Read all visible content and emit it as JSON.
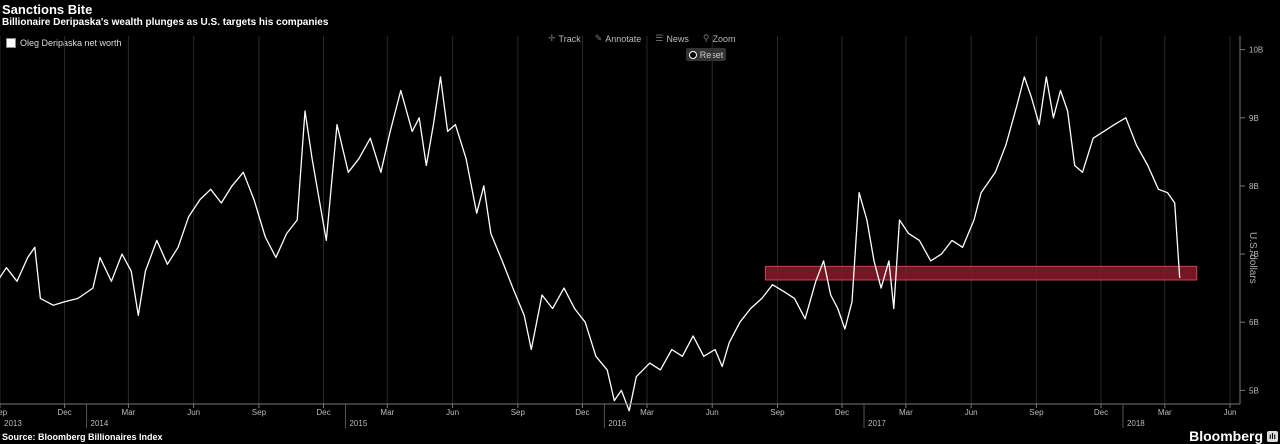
{
  "header": {
    "title": "Sanctions Bite",
    "subtitle": "Billionaire Deripaska's wealth plunges as U.S. targets his companies"
  },
  "legend": {
    "label": "Oleg Deripaska net worth",
    "color": "#ffffff"
  },
  "toolbar": {
    "track": "Track",
    "annotate": "Annotate",
    "news": "News",
    "zoom": "Zoom",
    "reset": "Reset"
  },
  "footer": {
    "source": "Source: Bloomberg Billionaires Index",
    "brand": "Bloomberg"
  },
  "colors": {
    "background": "#000000",
    "line": "#ffffff",
    "highlight": "#8b1a2b",
    "grid": "#2a2a2a"
  },
  "chart_data": {
    "type": "line",
    "title": "Sanctions Bite",
    "ylabel": "U.S. dollars",
    "ylim": [
      4.8,
      10.2
    ],
    "yticks": [
      "5B",
      "6B",
      "7B",
      "8B",
      "9B",
      "10B"
    ],
    "yaxis_side": "right",
    "grid": "vertical",
    "xlim": [
      "2013-09-01",
      "2018-06-15"
    ],
    "month_ticks": [
      "Sep",
      "Dec",
      "Mar",
      "Jun",
      "Sep",
      "Dec",
      "Mar",
      "Jun",
      "Sep",
      "Dec",
      "Mar",
      "Jun",
      "Sep",
      "Dec",
      "Mar",
      "Jun",
      "Sep",
      "Dec",
      "Mar",
      "Jun"
    ],
    "month_dates": [
      "2013-09-01",
      "2013-12-01",
      "2014-03-01",
      "2014-06-01",
      "2014-09-01",
      "2014-12-01",
      "2015-03-01",
      "2015-06-01",
      "2015-09-01",
      "2015-12-01",
      "2016-03-01",
      "2016-06-01",
      "2016-09-01",
      "2016-12-01",
      "2017-03-01",
      "2017-06-01",
      "2017-09-01",
      "2017-12-01",
      "2018-03-01",
      "2018-06-01"
    ],
    "year_ticks": [
      "2013",
      "2014",
      "2015",
      "2016",
      "2017",
      "2018"
    ],
    "year_dates": [
      "2013-09-01",
      "2014-01-01",
      "2015-01-01",
      "2016-01-01",
      "2017-01-01",
      "2018-01-01"
    ],
    "highlight_band": {
      "x": [
        "2016-08-15",
        "2018-04-15"
      ],
      "y": [
        6.62,
        6.82
      ]
    },
    "series": [
      {
        "name": "Oleg Deripaska net worth",
        "points": [
          [
            "2013-08-25",
            6.55
          ],
          [
            "2013-09-10",
            6.8
          ],
          [
            "2013-09-25",
            6.6
          ],
          [
            "2013-10-10",
            6.95
          ],
          [
            "2013-10-20",
            7.1
          ],
          [
            "2013-10-28",
            6.35
          ],
          [
            "2013-11-15",
            6.25
          ],
          [
            "2013-12-01",
            6.3
          ],
          [
            "2013-12-20",
            6.35
          ],
          [
            "2014-01-10",
            6.5
          ],
          [
            "2014-01-20",
            6.95
          ],
          [
            "2014-02-05",
            6.6
          ],
          [
            "2014-02-20",
            7.0
          ],
          [
            "2014-03-05",
            6.75
          ],
          [
            "2014-03-15",
            6.1
          ],
          [
            "2014-03-25",
            6.75
          ],
          [
            "2014-04-10",
            7.2
          ],
          [
            "2014-04-25",
            6.85
          ],
          [
            "2014-05-10",
            7.1
          ],
          [
            "2014-05-25",
            7.55
          ],
          [
            "2014-06-10",
            7.8
          ],
          [
            "2014-06-25",
            7.95
          ],
          [
            "2014-07-10",
            7.75
          ],
          [
            "2014-07-25",
            8.0
          ],
          [
            "2014-08-10",
            8.2
          ],
          [
            "2014-08-25",
            7.8
          ],
          [
            "2014-09-10",
            7.25
          ],
          [
            "2014-09-25",
            6.95
          ],
          [
            "2014-10-10",
            7.3
          ],
          [
            "2014-10-25",
            7.5
          ],
          [
            "2014-11-05",
            9.1
          ],
          [
            "2014-11-15",
            8.4
          ],
          [
            "2014-12-05",
            7.2
          ],
          [
            "2014-12-20",
            8.9
          ],
          [
            "2015-01-05",
            8.2
          ],
          [
            "2015-01-20",
            8.4
          ],
          [
            "2015-02-05",
            8.7
          ],
          [
            "2015-02-20",
            8.2
          ],
          [
            "2015-03-05",
            8.8
          ],
          [
            "2015-03-20",
            9.4
          ],
          [
            "2015-04-05",
            8.8
          ],
          [
            "2015-04-15",
            9.0
          ],
          [
            "2015-04-25",
            8.3
          ],
          [
            "2015-05-05",
            8.9
          ],
          [
            "2015-05-15",
            9.6
          ],
          [
            "2015-05-25",
            8.8
          ],
          [
            "2015-06-05",
            8.9
          ],
          [
            "2015-06-20",
            8.4
          ],
          [
            "2015-07-05",
            7.6
          ],
          [
            "2015-07-15",
            8.0
          ],
          [
            "2015-07-25",
            7.3
          ],
          [
            "2015-08-10",
            6.9
          ],
          [
            "2015-08-25",
            6.5
          ],
          [
            "2015-09-10",
            6.1
          ],
          [
            "2015-09-20",
            5.6
          ],
          [
            "2015-10-05",
            6.4
          ],
          [
            "2015-10-20",
            6.2
          ],
          [
            "2015-11-05",
            6.5
          ],
          [
            "2015-11-20",
            6.2
          ],
          [
            "2015-12-05",
            6.0
          ],
          [
            "2015-12-20",
            5.5
          ],
          [
            "2016-01-05",
            5.3
          ],
          [
            "2016-01-15",
            4.85
          ],
          [
            "2016-01-25",
            5.0
          ],
          [
            "2016-02-05",
            4.7
          ],
          [
            "2016-02-15",
            5.2
          ],
          [
            "2016-03-05",
            5.4
          ],
          [
            "2016-03-20",
            5.3
          ],
          [
            "2016-04-05",
            5.6
          ],
          [
            "2016-04-20",
            5.5
          ],
          [
            "2016-05-05",
            5.8
          ],
          [
            "2016-05-20",
            5.5
          ],
          [
            "2016-06-05",
            5.6
          ],
          [
            "2016-06-15",
            5.35
          ],
          [
            "2016-06-25",
            5.7
          ],
          [
            "2016-07-10",
            6.0
          ],
          [
            "2016-07-25",
            6.2
          ],
          [
            "2016-08-10",
            6.35
          ],
          [
            "2016-08-25",
            6.55
          ],
          [
            "2016-09-10",
            6.45
          ],
          [
            "2016-09-25",
            6.35
          ],
          [
            "2016-10-10",
            6.05
          ],
          [
            "2016-10-25",
            6.6
          ],
          [
            "2016-11-05",
            6.9
          ],
          [
            "2016-11-15",
            6.4
          ],
          [
            "2016-11-25",
            6.2
          ],
          [
            "2016-12-05",
            5.9
          ],
          [
            "2016-12-15",
            6.3
          ],
          [
            "2016-12-25",
            7.9
          ],
          [
            "2017-01-05",
            7.5
          ],
          [
            "2017-01-15",
            6.9
          ],
          [
            "2017-01-25",
            6.5
          ],
          [
            "2017-02-05",
            6.9
          ],
          [
            "2017-02-12",
            6.2
          ],
          [
            "2017-02-20",
            7.5
          ],
          [
            "2017-03-05",
            7.3
          ],
          [
            "2017-03-20",
            7.2
          ],
          [
            "2017-04-05",
            6.9
          ],
          [
            "2017-04-20",
            7.0
          ],
          [
            "2017-05-05",
            7.2
          ],
          [
            "2017-05-20",
            7.1
          ],
          [
            "2017-06-05",
            7.5
          ],
          [
            "2017-06-15",
            7.9
          ],
          [
            "2017-07-05",
            8.2
          ],
          [
            "2017-07-20",
            8.6
          ],
          [
            "2017-08-05",
            9.2
          ],
          [
            "2017-08-15",
            9.6
          ],
          [
            "2017-08-25",
            9.3
          ],
          [
            "2017-09-05",
            8.9
          ],
          [
            "2017-09-15",
            9.6
          ],
          [
            "2017-09-25",
            9.0
          ],
          [
            "2017-10-05",
            9.4
          ],
          [
            "2017-10-15",
            9.1
          ],
          [
            "2017-10-25",
            8.3
          ],
          [
            "2017-11-05",
            8.2
          ],
          [
            "2017-11-20",
            8.7
          ],
          [
            "2017-12-05",
            8.8
          ],
          [
            "2017-12-20",
            8.9
          ],
          [
            "2018-01-05",
            9.0
          ],
          [
            "2018-01-20",
            8.6
          ],
          [
            "2018-02-05",
            8.3
          ],
          [
            "2018-02-20",
            7.95
          ],
          [
            "2018-03-05",
            7.9
          ],
          [
            "2018-03-15",
            7.75
          ],
          [
            "2018-03-22",
            6.65
          ]
        ]
      }
    ]
  }
}
